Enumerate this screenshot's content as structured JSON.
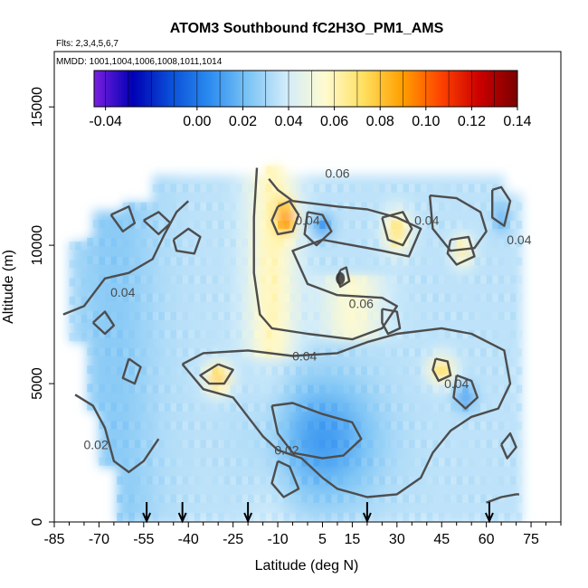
{
  "chart_data": {
    "type": "heatmap",
    "title": "ATOM3 Southbound fC2H3O_PM1_AMS",
    "subtitle_flights": "Flts: 2,3,4,5,6,7",
    "subtitle_dates": "MMDD: 1001,1004,1006,1008,1011,1014",
    "xlabel": "Latitude (deg N)",
    "ylabel": "Altitude (m)",
    "xlim": [
      -85,
      85
    ],
    "ylim": [
      0,
      17000
    ],
    "x_ticks": [
      -85,
      -70,
      -55,
      -40,
      -25,
      -10,
      5,
      15,
      30,
      45,
      60,
      75
    ],
    "x_tick_labels": [
      "-85",
      "-70",
      "-55",
      "-40",
      "-25",
      "-10",
      "5",
      "15",
      "30",
      "45",
      "60",
      "75"
    ],
    "y_ticks": [
      0,
      5000,
      10000,
      15000
    ],
    "y_tick_labels": [
      "0",
      "5000",
      "10000",
      "15000"
    ],
    "colorbar": {
      "min": -0.045,
      "max": 0.14,
      "ticks": [
        -0.04,
        0.0,
        0.02,
        0.04,
        0.06,
        0.08,
        0.1,
        0.12,
        0.14
      ],
      "tick_labels": [
        "-0.04",
        "0.00",
        "0.02",
        "0.04",
        "0.06",
        "0.08",
        "0.10",
        "0.12",
        "0.14"
      ],
      "colors": [
        "#7a1fe0",
        "#0000b4",
        "#0a4fd8",
        "#2b8cf0",
        "#7cc4f5",
        "#d2ecfa",
        "#fffbd0",
        "#ffe060",
        "#ffa000",
        "#ff4400",
        "#cc0000",
        "#7a0000"
      ]
    },
    "contour_labels": [
      {
        "text": "0.06",
        "lat": 10,
        "alt": 12600
      },
      {
        "text": "0.04",
        "lat": 0,
        "alt": 10900
      },
      {
        "text": "0.04",
        "lat": 40,
        "alt": 10900
      },
      {
        "text": "0.04",
        "lat": 71,
        "alt": 10200
      },
      {
        "text": "0.04",
        "lat": -62,
        "alt": 8300
      },
      {
        "text": "0.06",
        "lat": 18,
        "alt": 7900
      },
      {
        "text": "0.04",
        "lat": -1,
        "alt": 6000
      },
      {
        "text": "0.04",
        "lat": 50,
        "alt": 5000
      },
      {
        "text": "0.02",
        "lat": -71,
        "alt": 2800
      },
      {
        "text": "0.02",
        "lat": -7,
        "alt": 2600
      }
    ],
    "flight_arrows_lat": [
      -54,
      -42,
      -20,
      20,
      61
    ]
  }
}
